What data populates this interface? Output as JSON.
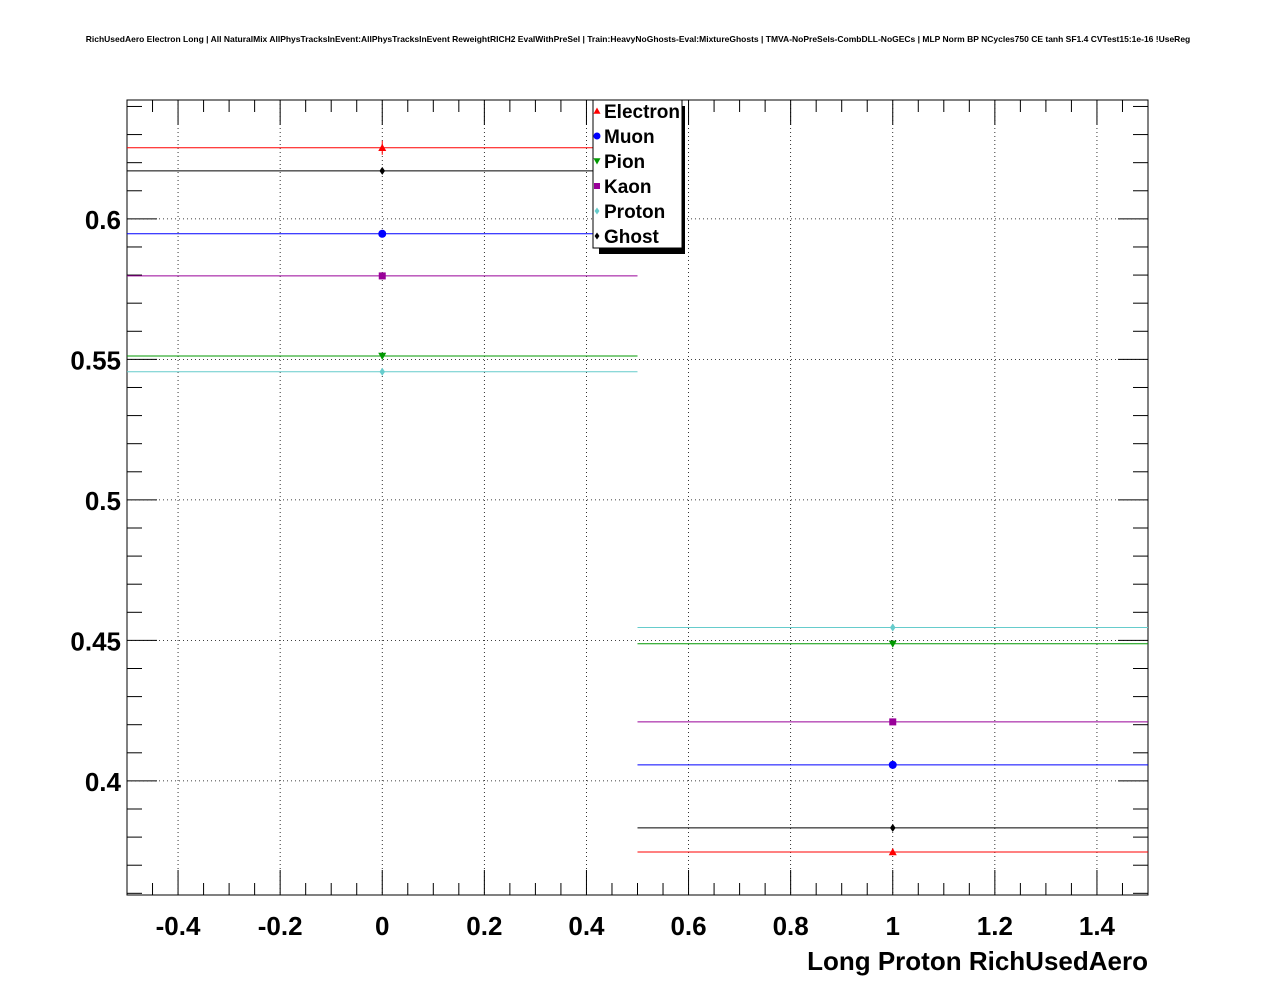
{
  "chart_data": {
    "type": "scatter",
    "title": "RichUsedAero Electron Long | All NaturalMix AllPhysTracksInEvent:AllPhysTracksInEvent ReweightRICH2 EvalWithPreSel | Train:HeavyNoGhosts-Eval:MixtureGhosts | TMVA-NoPreSels-CombDLL-NoGECs | MLP Norm BP NCycles750 CE tanh SF1.4 CVTest15:1e-16 !UseReg",
    "xlabel": "Long Proton RichUsedAero",
    "ylabel": "",
    "xlim": [
      -0.5,
      1.5
    ],
    "ylim": [
      0.3594,
      0.6423
    ],
    "grid": true,
    "legend_position": "top-center",
    "x": [
      0,
      1
    ],
    "x_bin_halfwidth": 0.5,
    "xticks": [
      "-0.4",
      "-0.2",
      "0",
      "0.2",
      "0.4",
      "0.6",
      "0.8",
      "1",
      "1.2",
      "1.4"
    ],
    "yticks": [
      "0.4",
      "0.45",
      "0.5",
      "0.55",
      "0.6"
    ],
    "series": [
      {
        "name": "Electron",
        "color": "#ff0000",
        "marker": "triangle-up",
        "values": [
          0.6253,
          0.3747
        ],
        "errors": [
          0.0025,
          0.001
        ]
      },
      {
        "name": "Muon",
        "color": "#0000ff",
        "marker": "circle",
        "values": [
          0.5947,
          0.4057
        ],
        "errors": [
          0.001,
          0.001
        ]
      },
      {
        "name": "Pion",
        "color": "#009900",
        "marker": "triangle-down",
        "values": [
          0.5512,
          0.4488
        ],
        "errors": [
          0.001,
          0.001
        ]
      },
      {
        "name": "Kaon",
        "color": "#990099",
        "marker": "square",
        "values": [
          0.5797,
          0.421
        ],
        "errors": [
          0.001,
          0.001
        ]
      },
      {
        "name": "Proton",
        "color": "#66cccc",
        "marker": "diamond",
        "values": [
          0.5456,
          0.4546
        ],
        "errors": [
          0.001,
          0.001
        ]
      },
      {
        "name": "Ghost",
        "color": "#000000",
        "marker": "diamond",
        "values": [
          0.6171,
          0.3833
        ],
        "errors": [
          0.001,
          0.001
        ]
      }
    ]
  }
}
